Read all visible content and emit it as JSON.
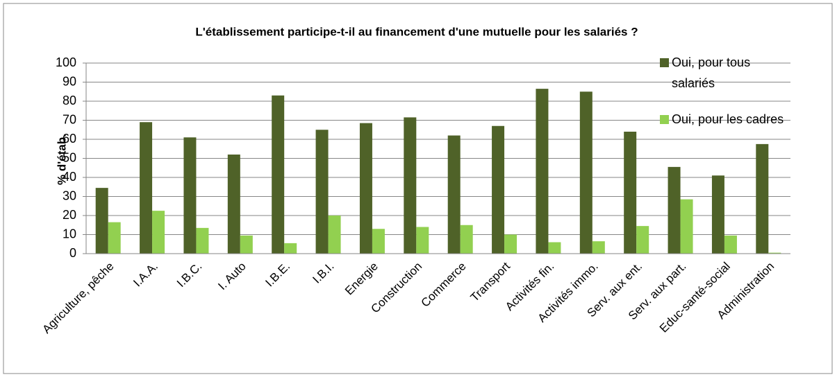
{
  "chart_data": {
    "type": "bar",
    "title": "L'établissement participe-t-il au financement d'une mutuelle pour les salariés ?",
    "ylabel": "% d'étab.",
    "categories": [
      "Agriculture, pêche",
      "I.A.A.",
      "I.B.C.",
      "I. Auto",
      "I.B.E.",
      "I.B.I.",
      "Energie",
      "Construction",
      "Commerce",
      "Transport",
      "Activités fin.",
      "Activités immo.",
      "Serv. aux ent.",
      "Serv. aux part.",
      "Educ-santé-social",
      "Administration"
    ],
    "series": [
      {
        "name": "Oui, pour tous salariés",
        "color": "#4f6228",
        "values": [
          34.5,
          69,
          61,
          52,
          83,
          65,
          68.5,
          71.5,
          62,
          67,
          86.5,
          85,
          64,
          45.5,
          41,
          57.5
        ]
      },
      {
        "name": "Oui, pour les cadres",
        "color": "#92d050",
        "values": [
          16.5,
          22.5,
          13.5,
          9.5,
          5.5,
          20,
          13,
          14,
          15,
          10,
          6,
          6.5,
          14.5,
          28.5,
          9.5,
          0.5
        ]
      }
    ],
    "ylim": [
      0,
      100
    ],
    "yticks": [
      0,
      10,
      20,
      30,
      40,
      50,
      60,
      70,
      80,
      90,
      100
    ],
    "grid": true,
    "legend": "right"
  }
}
